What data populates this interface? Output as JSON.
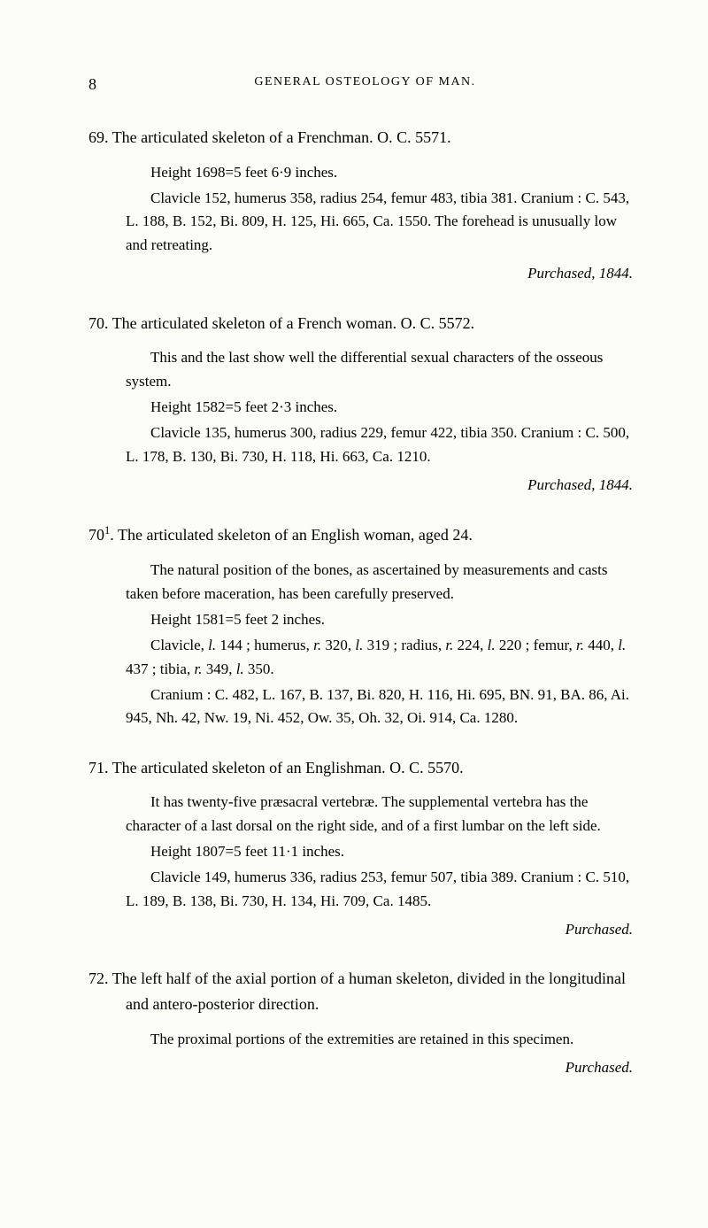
{
  "page_number": "8",
  "header": "GENERAL OSTEOLOGY OF MAN.",
  "entries": [
    {
      "num": "69.",
      "title": "The articulated skeleton of a Frenchman.   O. C. 5571.",
      "body": [
        "Height 1698=5 feet 6·9 inches.",
        "Clavicle 152, humerus 358, radius 254, femur 483, tibia 381. Cranium : C. 543, L. 188, B. 152, Bi. 809, H. 125, Hi. 665, Ca. 1550.   The forehead is unusually low and retreating."
      ],
      "purchased": "Purchased, 1844."
    },
    {
      "num": "70.",
      "title": "The articulated skeleton of a French woman.   O. C. 5572.",
      "body": [
        "This and the last show well the differential sexual characters of the osseous system.",
        "Height 1582=5 feet 2·3 inches.",
        "Clavicle 135, humerus 300, radius 229, femur 422, tibia 350. Cranium : C. 500, L. 178, B. 130, Bi. 730, H. 118, Hi. 663, Ca. 1210."
      ],
      "purchased": "Purchased, 1844."
    },
    {
      "num_html": "70<sup>1</sup>.",
      "title": "The articulated skeleton of an English woman, aged 24.",
      "body": [
        "The natural position of the bones, as ascertained by measurements and casts taken before maceration, has been carefully preserved.",
        "Height 1581=5 feet 2 inches.",
        "Clavicle, <span class='italic'>l.</span> 144 ; humerus, <span class='italic'>r.</span> 320, <span class='italic'>l.</span> 319 ; radius, <span class='italic'>r.</span> 224, <span class='italic'>l.</span> 220 ; femur, <span class='italic'>r.</span> 440, <span class='italic'>l.</span> 437 ; tibia, <span class='italic'>r.</span> 349, <span class='italic'>l.</span> 350.",
        "Cranium :  C. 482, L. 167, B. 137, Bi. 820, H. 116, Hi. 695, BN. 91, BA. 86, Ai. 945, Nh. 42, Nw. 19, Ni. 452, Ow. 35, Oh. 32, Oi. 914, Ca. 1280."
      ]
    },
    {
      "num": "71.",
      "title": "The articulated skeleton of an Englishman.   O. C. 5570.",
      "body": [
        "It has twenty-five præsacral vertebræ.   The supplemental vertebra has the character of a last dorsal on the right side, and of a first lumbar on the left side.",
        "Height 1807=5 feet 11·1 inches.",
        "Clavicle 149, humerus 336, radius 253, femur 507, tibia 389. Cranium :  C. 510, L. 189, B. 138, Bi. 730, H. 134, Hi. 709, Ca. 1485."
      ],
      "purchased": "Purchased."
    },
    {
      "num": "72.",
      "title": "The left half of the axial portion of a human skeleton, divided in the longitudinal and antero-posterior direction.",
      "body": [
        "The proximal portions of the extremities are retained in this specimen."
      ],
      "purchased": "Purchased."
    }
  ]
}
